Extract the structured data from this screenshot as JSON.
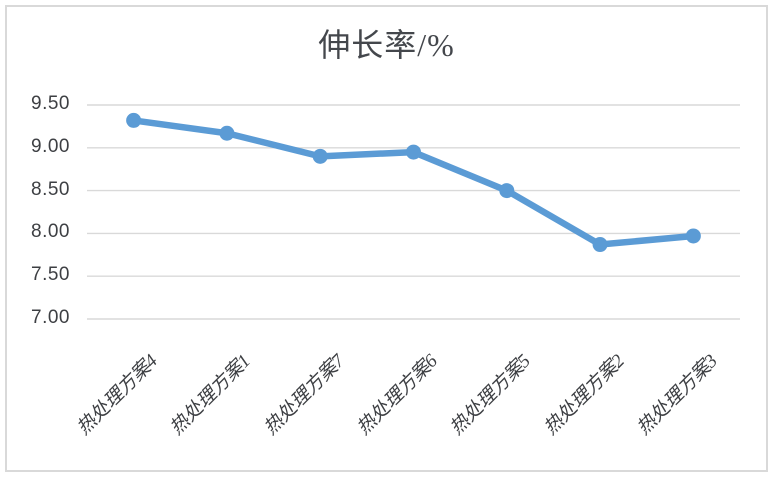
{
  "chart_title": "伸长率/%",
  "chart_data": {
    "type": "line",
    "title": "伸长率/%",
    "categories": [
      "热处理方案4",
      "热处理方案1",
      "热处理方案7",
      "热处理方案6",
      "热处理方案5",
      "热处理方案2",
      "热处理方案3"
    ],
    "values": [
      9.32,
      9.17,
      8.9,
      8.95,
      8.5,
      7.87,
      7.97
    ],
    "series": [
      {
        "name": "伸长率",
        "values": [
          9.32,
          9.17,
          8.9,
          8.95,
          8.5,
          7.87,
          7.97
        ]
      }
    ],
    "xlabel": "",
    "ylabel": "",
    "ylim": [
      7.0,
      9.5
    ],
    "ytick_step": 0.5,
    "ytick_labels": [
      "9.50",
      "9.00",
      "8.50",
      "8.00",
      "7.50",
      "7.00"
    ],
    "grid": true,
    "legend_position": "none",
    "marker": "circle",
    "series_color": "#5B9BD5",
    "gridline_color": "#D9D9D9",
    "axis_text_color": "#3d3f43",
    "title_color": "#44474c",
    "border_color": "#D9D9D9"
  }
}
